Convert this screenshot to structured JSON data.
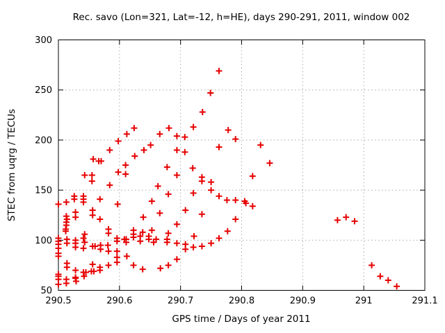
{
  "title": "Rec. savo (Lon=321, Lat=-12, h=HE), days 290-291, 2011, window 002",
  "chart_data": {
    "type": "scatter",
    "title": "Rec. savo (Lon=321, Lat=-12, h=HE), days 290-291, 2011, window 002",
    "xlabel": "GPS time / Days of year 2011",
    "ylabel": "STEC from uqrg / TECUs",
    "xlim": [
      290.5,
      291.1
    ],
    "ylim": [
      50,
      300
    ],
    "x_ticks": [
      290.5,
      290.6,
      290.7,
      290.8,
      290.9,
      291.0,
      291.1
    ],
    "x_tick_labels": [
      "290.5",
      "290.6",
      "290.7",
      "290.8",
      "290.9",
      "291",
      "291.1"
    ],
    "y_ticks": [
      50,
      100,
      150,
      200,
      250,
      300
    ],
    "y_tick_labels": [
      "50",
      "100",
      "150",
      "200",
      "250",
      "300"
    ],
    "grid": true,
    "legend": "none",
    "marker": "plus",
    "marker_color": "#e60000",
    "grid_color": "#a8a8a8",
    "border_color": "#000000",
    "series": [
      {
        "name": "STEC",
        "color": "#e60000",
        "points": [
          [
            290.557,
            181
          ],
          [
            290.566,
            179
          ],
          [
            290.57,
            179
          ],
          [
            290.584,
            190
          ],
          [
            290.598,
            199
          ],
          [
            290.61,
            175
          ],
          [
            290.612,
            206
          ],
          [
            290.624,
            212
          ],
          [
            290.625,
            184
          ],
          [
            290.64,
            190
          ],
          [
            290.651,
            195
          ],
          [
            290.543,
            165
          ],
          [
            290.555,
            165
          ],
          [
            290.555,
            159
          ],
          [
            290.584,
            155
          ],
          [
            290.598,
            168
          ],
          [
            290.61,
            166
          ],
          [
            290.5,
            136
          ],
          [
            290.513,
            138
          ],
          [
            290.526,
            144
          ],
          [
            290.526,
            141
          ],
          [
            290.541,
            144
          ],
          [
            290.541,
            141
          ],
          [
            290.541,
            138
          ],
          [
            290.568,
            141
          ],
          [
            290.597,
            136
          ],
          [
            290.653,
            139
          ],
          [
            290.513,
            124
          ],
          [
            290.514,
            121
          ],
          [
            290.528,
            128
          ],
          [
            290.528,
            123
          ],
          [
            290.556,
            130
          ],
          [
            290.556,
            125
          ],
          [
            290.568,
            121
          ],
          [
            290.639,
            123
          ],
          [
            290.513,
            118
          ],
          [
            290.513,
            115
          ],
          [
            290.512,
            111
          ],
          [
            290.512,
            109
          ],
          [
            290.543,
            106
          ],
          [
            290.582,
            111
          ],
          [
            290.582,
            107
          ],
          [
            290.623,
            110
          ],
          [
            290.623,
            106
          ],
          [
            290.638,
            108
          ],
          [
            290.653,
            110
          ],
          [
            290.5,
            102
          ],
          [
            290.5,
            99
          ],
          [
            290.5,
            96
          ],
          [
            290.5,
            92
          ],
          [
            290.514,
            101
          ],
          [
            290.514,
            97
          ],
          [
            290.528,
            100
          ],
          [
            290.528,
            97
          ],
          [
            290.528,
            93
          ],
          [
            290.541,
            102
          ],
          [
            290.543,
            98
          ],
          [
            290.541,
            92
          ],
          [
            290.556,
            94
          ],
          [
            290.56,
            94
          ],
          [
            290.569,
            95
          ],
          [
            290.569,
            91
          ],
          [
            290.581,
            95
          ],
          [
            290.582,
            89
          ],
          [
            290.596,
            102
          ],
          [
            290.596,
            99
          ],
          [
            290.608,
            101
          ],
          [
            290.611,
            101
          ],
          [
            290.611,
            98
          ],
          [
            290.623,
            103
          ],
          [
            290.634,
            104
          ],
          [
            290.634,
            99
          ],
          [
            290.648,
            104
          ],
          [
            290.648,
            101
          ],
          [
            290.656,
            98
          ],
          [
            290.66,
            101
          ],
          [
            290.5,
            87
          ],
          [
            290.5,
            84
          ],
          [
            290.596,
            89
          ],
          [
            290.596,
            83
          ],
          [
            290.612,
            84
          ],
          [
            290.596,
            78
          ],
          [
            290.514,
            77
          ],
          [
            290.514,
            73
          ],
          [
            290.528,
            70
          ],
          [
            290.528,
            63
          ],
          [
            290.541,
            68
          ],
          [
            290.545,
            68
          ],
          [
            290.542,
            64
          ],
          [
            290.556,
            76
          ],
          [
            290.554,
            69
          ],
          [
            290.558,
            69
          ],
          [
            290.568,
            73
          ],
          [
            290.568,
            70
          ],
          [
            290.582,
            75
          ],
          [
            290.623,
            75
          ],
          [
            290.638,
            71
          ],
          [
            290.5,
            66
          ],
          [
            290.5,
            64
          ],
          [
            290.5,
            61
          ],
          [
            290.513,
            61
          ],
          [
            290.513,
            57
          ],
          [
            290.528,
            62
          ],
          [
            290.529,
            59
          ],
          [
            290.5,
            56
          ],
          [
            290.763,
            269
          ],
          [
            290.749,
            247
          ],
          [
            290.736,
            228
          ],
          [
            290.721,
            213
          ],
          [
            290.681,
            212
          ],
          [
            290.666,
            206
          ],
          [
            290.694,
            204
          ],
          [
            290.707,
            203
          ],
          [
            290.778,
            210
          ],
          [
            290.79,
            201
          ],
          [
            290.763,
            193
          ],
          [
            290.694,
            190
          ],
          [
            290.707,
            188
          ],
          [
            290.831,
            195
          ],
          [
            290.846,
            177
          ],
          [
            290.818,
            164
          ],
          [
            290.818,
            134
          ],
          [
            290.678,
            173
          ],
          [
            290.72,
            172
          ],
          [
            290.694,
            165
          ],
          [
            290.735,
            163
          ],
          [
            290.735,
            159
          ],
          [
            290.663,
            154
          ],
          [
            290.75,
            158
          ],
          [
            290.75,
            150
          ],
          [
            290.721,
            147
          ],
          [
            290.68,
            146
          ],
          [
            290.763,
            144
          ],
          [
            290.776,
            140
          ],
          [
            290.79,
            140
          ],
          [
            290.805,
            139
          ],
          [
            290.807,
            137
          ],
          [
            290.666,
            127
          ],
          [
            290.708,
            130
          ],
          [
            290.735,
            126
          ],
          [
            290.79,
            121
          ],
          [
            290.694,
            116
          ],
          [
            290.68,
            107
          ],
          [
            290.777,
            109
          ],
          [
            290.722,
            104
          ],
          [
            290.763,
            102
          ],
          [
            290.678,
            101
          ],
          [
            290.678,
            98
          ],
          [
            290.694,
            97
          ],
          [
            290.708,
            96
          ],
          [
            290.708,
            91
          ],
          [
            290.721,
            93
          ],
          [
            290.735,
            94
          ],
          [
            290.75,
            97
          ],
          [
            290.694,
            81
          ],
          [
            290.68,
            75
          ],
          [
            290.667,
            72
          ],
          [
            290.957,
            120
          ],
          [
            290.971,
            123
          ],
          [
            290.985,
            119
          ],
          [
            291.013,
            75
          ],
          [
            291.027,
            64
          ],
          [
            291.04,
            60
          ],
          [
            291.054,
            54
          ]
        ]
      }
    ]
  }
}
